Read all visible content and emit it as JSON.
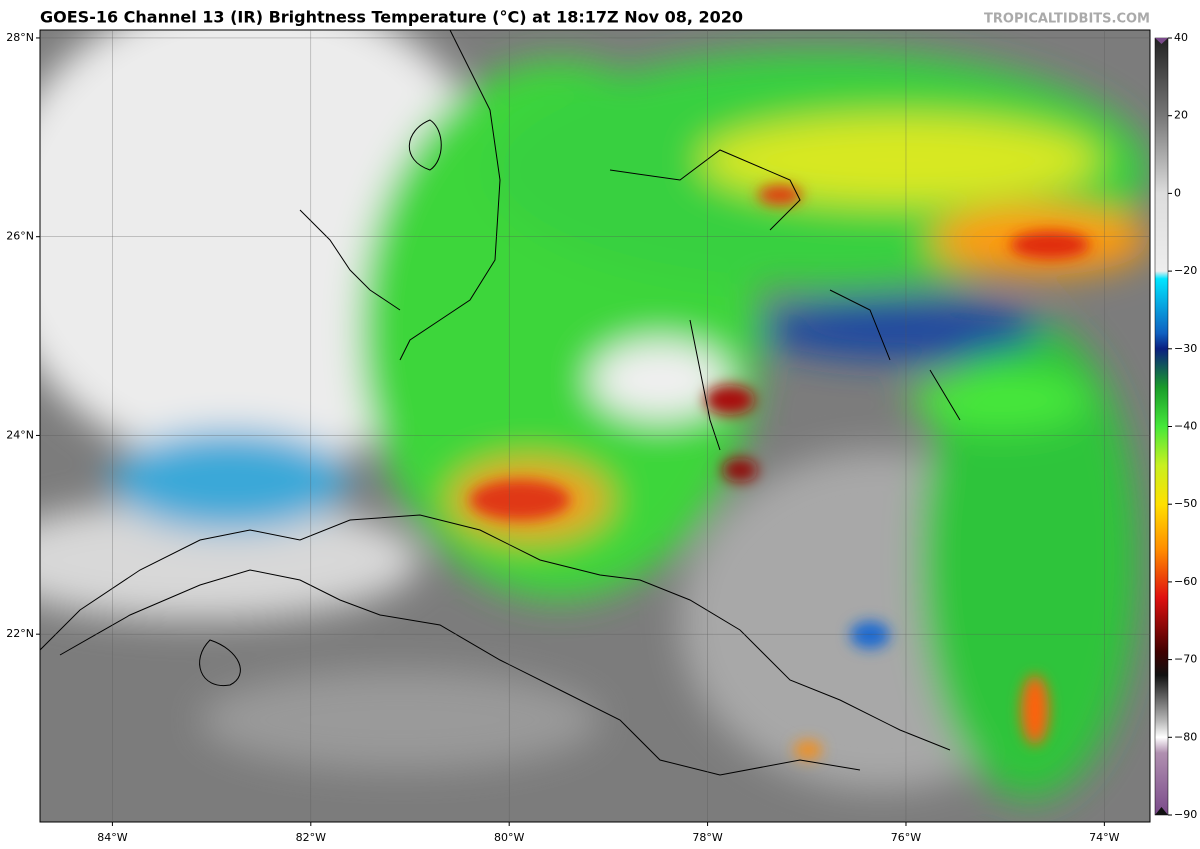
{
  "title": "GOES-16 Channel 13 (IR) Brightness Temperature (°C) at 18:17Z Nov 08, 2020",
  "credit": "TROPICALTIDBITS.COM",
  "map": {
    "xlim": [
      -84.73,
      -73.54
    ],
    "ylim": [
      20.11,
      28.08
    ],
    "xticks": [
      {
        "value": -84,
        "label": "84°W"
      },
      {
        "value": -82,
        "label": "82°W"
      },
      {
        "value": -80,
        "label": "80°W"
      },
      {
        "value": -78,
        "label": "78°W"
      },
      {
        "value": -76,
        "label": "76°W"
      },
      {
        "value": -74,
        "label": "74°W"
      }
    ],
    "yticks": [
      {
        "value": 22,
        "label": "22°N"
      },
      {
        "value": 24,
        "label": "24°N"
      },
      {
        "value": 26,
        "label": "26°N"
      },
      {
        "value": 28,
        "label": "28°N"
      }
    ]
  },
  "colorbar": {
    "ylim": [
      -90,
      40
    ],
    "yticks": [
      40,
      20,
      0,
      {
        "value": -20,
        "label": "−20"
      },
      {
        "value": -30,
        "label": "−30"
      },
      {
        "value": -40,
        "label": "−40"
      },
      {
        "value": -50,
        "label": "−50"
      },
      {
        "value": -60,
        "label": "−60"
      },
      {
        "value": -70,
        "label": "−70"
      },
      {
        "value": -80,
        "label": "−80"
      },
      {
        "value": -90,
        "label": "−90"
      }
    ]
  }
}
